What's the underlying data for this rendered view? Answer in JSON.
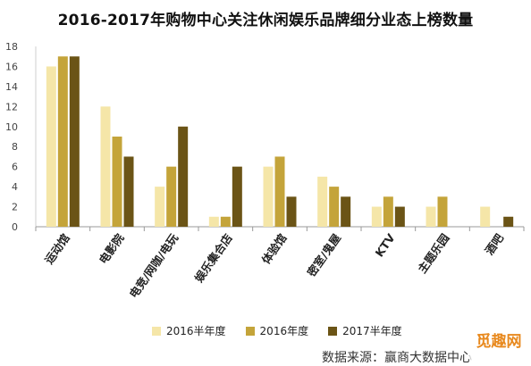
{
  "chart_data": {
    "type": "bar",
    "title": "2016-2017年购物中心关注休闲娱乐品牌细分业态上榜数量",
    "categories": [
      "运动馆",
      "电影院",
      "电竞/网咖/电玩",
      "娱乐集合店",
      "体验馆",
      "密室/鬼屋",
      "KTV",
      "主题乐园",
      "酒吧"
    ],
    "series": [
      {
        "name": "2016半年度",
        "color": "#f5e6a8",
        "values": [
          16,
          12,
          4,
          1,
          6,
          5,
          2,
          2,
          2
        ]
      },
      {
        "name": "2016年度",
        "color": "#c4a43a",
        "values": [
          17,
          9,
          6,
          1,
          7,
          4,
          3,
          3,
          0
        ]
      },
      {
        "name": "2017半年度",
        "color": "#6b5416",
        "values": [
          17,
          7,
          10,
          6,
          3,
          3,
          2,
          0,
          1
        ]
      }
    ],
    "ylim": [
      0,
      18
    ],
    "yticks": [
      0,
      2,
      4,
      6,
      8,
      10,
      12,
      14,
      16,
      18
    ],
    "xlabel": "",
    "ylabel": "",
    "grid": false,
    "legend": "bottom"
  },
  "footer": "数据来源：赢商大数据中心",
  "watermark": "觅趣网"
}
